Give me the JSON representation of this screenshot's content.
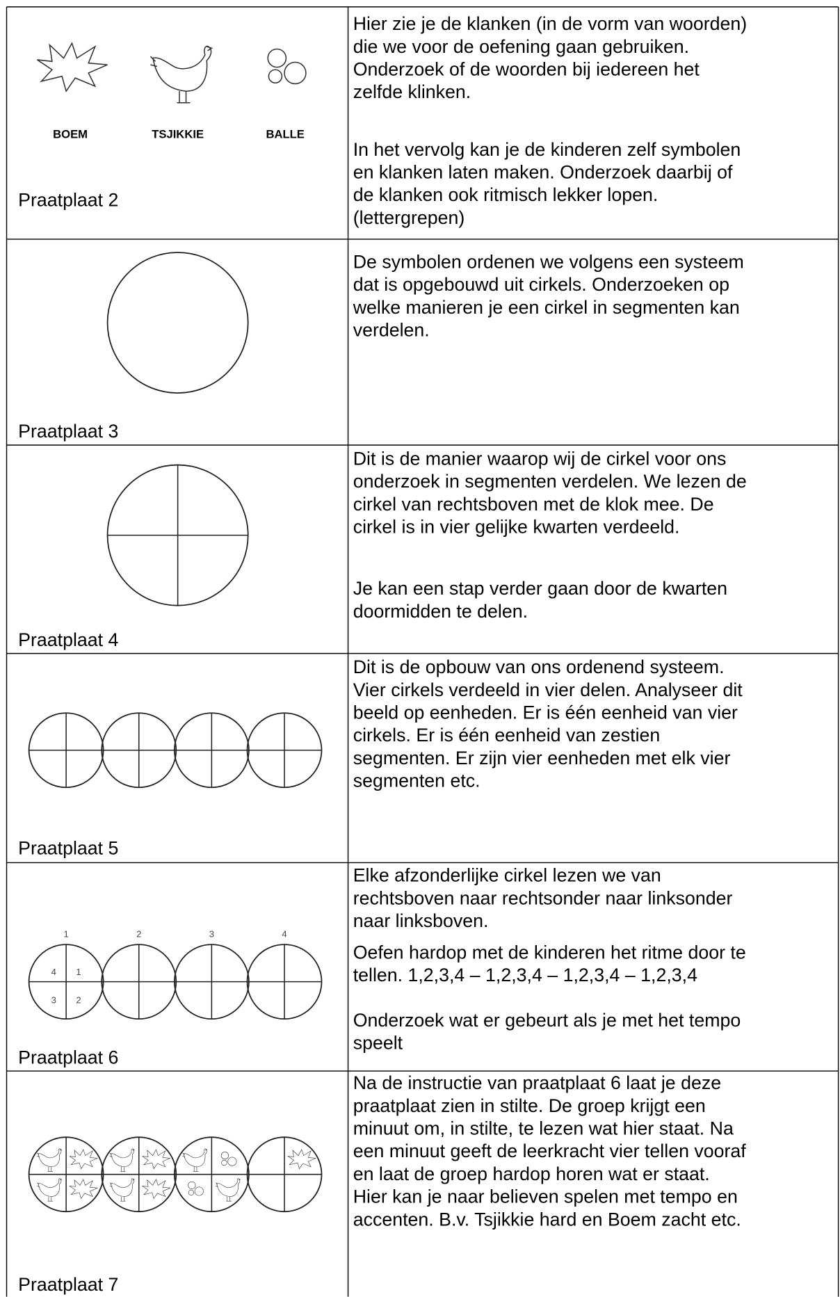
{
  "rows": [
    {
      "label": "Praatplaat 2",
      "captions": [
        "BOEM",
        "TSJIKKIE",
        "BALLE"
      ],
      "paragraphs": [
        [
          "Hier zie je de klanken (in de vorm van woorden)",
          "die we voor de oefening gaan gebruiken.",
          "Onderzoek of de woorden bij iedereen het",
          "zelfde klinken."
        ],
        [
          "In het vervolg kan je de kinderen zelf symbolen",
          "en klanken laten maken. Onderzoek daarbij of",
          "de klanken ook ritmisch lekker lopen.",
          "(lettergrepen)"
        ]
      ]
    },
    {
      "label": "Praatplaat 3",
      "paragraphs": [
        [
          "De symbolen ordenen we volgens een systeem",
          "dat is opgebouwd uit cirkels. Onderzoeken op",
          "welke manieren je een cirkel in segmenten kan",
          "verdelen."
        ]
      ]
    },
    {
      "label": "Praatplaat 4",
      "paragraphs": [
        [
          "Dit is de manier waarop wij de cirkel voor ons",
          "onderzoek in segmenten verdelen. We lezen de",
          "cirkel van rechtsboven met de klok mee. De",
          "cirkel is in vier gelijke kwarten verdeeld."
        ],
        [
          "Je kan een stap verder gaan door de kwarten",
          "doormidden te delen."
        ]
      ]
    },
    {
      "label": "Praatplaat 5",
      "paragraphs": [
        [
          "Dit is de opbouw van ons ordenend systeem.",
          "Vier cirkels verdeeld in vier delen. Analyseer dit",
          "beeld op eenheden. Er is één eenheid van vier",
          "cirkels. Er is één eenheid van zestien",
          "segmenten. Er zijn vier eenheden met elk vier",
          "segmenten etc."
        ]
      ]
    },
    {
      "label": "Praatplaat 6",
      "circle_numbers": [
        "1",
        "2",
        "3",
        "4"
      ],
      "quadrant_numbers": [
        "4",
        "1",
        "3",
        "2"
      ],
      "paragraphs": [
        [
          "Elke afzonderlijke cirkel lezen we van",
          "rechtsboven naar rechtsonder naar linksonder",
          "naar linksboven."
        ],
        [
          "Oefen hardop met de kinderen het ritme door te",
          "tellen. 1,2,3,4 – 1,2,3,4 – 1,2,3,4 – 1,2,3,4"
        ],
        [
          "Onderzoek wat er gebeurt als je met het tempo",
          "speelt"
        ]
      ]
    },
    {
      "label": "Praatplaat 7",
      "paragraphs": [
        [
          "Na de instructie van praatplaat 6 laat je deze",
          "praatplaat zien in stilte. De groep krijgt een",
          "minuut om, in stilte, te lezen wat hier staat. Na",
          "een minuut geeft de leerkracht vier tellen vooraf",
          "en laat de groep hardop horen wat er staat.",
          "Hier kan je naar believen spelen met tempo en",
          "accenten. B.v. Tsjikkie hard en Boem zacht etc."
        ]
      ]
    }
  ]
}
